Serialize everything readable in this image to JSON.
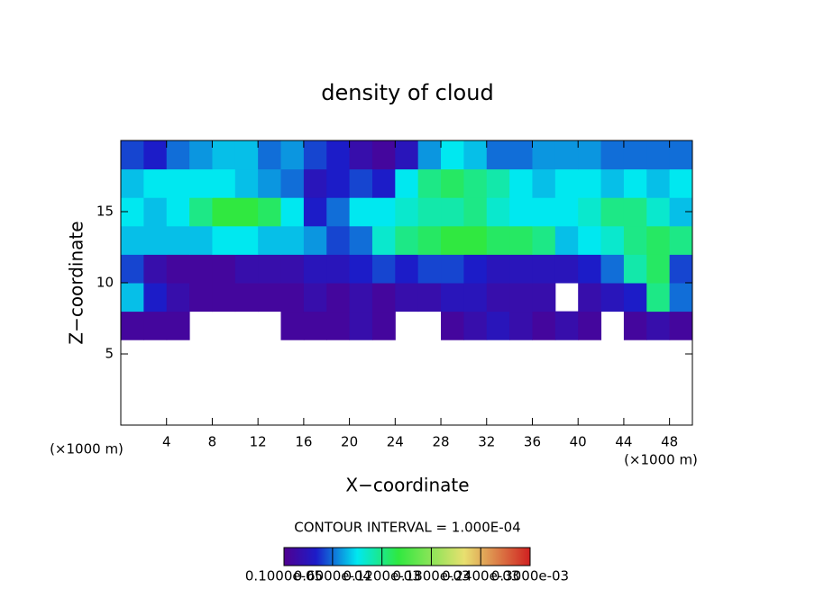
{
  "chart_data": {
    "type": "heatmap",
    "title": "density of cloud",
    "x_label": "X−coordinate",
    "y_label": "Z−coordinate",
    "x_unit": "(×1000 m)",
    "y_unit": "(×1000 m)",
    "note": "CONTOUR INTERVAL = 1.000E-04",
    "xlim": [
      0,
      50
    ],
    "ylim": [
      0,
      20
    ],
    "xticks": [
      4,
      8,
      12,
      16,
      20,
      24,
      28,
      32,
      36,
      40,
      44,
      48
    ],
    "yticks": [
      5,
      10,
      15
    ],
    "x_edges": [
      0,
      2,
      4,
      6,
      8,
      10,
      12,
      14,
      16,
      18,
      20,
      22,
      24,
      26,
      28,
      30,
      32,
      34,
      36,
      38,
      40,
      42,
      44,
      46,
      48,
      50
    ],
    "y_edges": [
      6,
      8,
      10,
      12,
      14,
      16,
      18,
      20
    ],
    "values": [
      [
        1e-05,
        1e-05,
        1e-05,
        null,
        null,
        null,
        null,
        1e-05,
        1e-05,
        1e-05,
        2e-05,
        1e-05,
        null,
        null,
        1e-05,
        2e-05,
        3e-05,
        2e-05,
        1e-05,
        2e-05,
        1e-05,
        null,
        1e-05,
        2e-05,
        1e-05
      ],
      [
        8e-05,
        4e-05,
        2e-05,
        1e-05,
        1e-05,
        1e-05,
        1e-05,
        1e-05,
        2e-05,
        1e-05,
        2e-05,
        1e-05,
        2e-05,
        2e-05,
        3e-05,
        3e-05,
        2e-05,
        2e-05,
        2e-05,
        null,
        2e-05,
        3e-05,
        4e-05,
        0.00012,
        6e-05
      ],
      [
        5e-05,
        2e-05,
        1e-05,
        1e-05,
        1e-05,
        2e-05,
        2e-05,
        2e-05,
        3e-05,
        3e-05,
        4e-05,
        5e-05,
        4e-05,
        5e-05,
        5e-05,
        4e-05,
        3e-05,
        3e-05,
        3e-05,
        3e-05,
        4e-05,
        6e-05,
        0.00011,
        0.00013,
        5e-05
      ],
      [
        8e-05,
        8e-05,
        8e-05,
        8e-05,
        9e-05,
        9e-05,
        8e-05,
        8e-05,
        7e-05,
        5e-05,
        6e-05,
        0.0001,
        0.00012,
        0.00013,
        0.00014,
        0.00014,
        0.00013,
        0.00013,
        0.00012,
        8e-05,
        9e-05,
        0.0001,
        0.00012,
        0.00013,
        0.00012
      ],
      [
        9e-05,
        8e-05,
        9e-05,
        0.00012,
        0.00014,
        0.00014,
        0.00013,
        9e-05,
        4e-05,
        6e-05,
        9e-05,
        9e-05,
        0.0001,
        0.00011,
        0.00011,
        0.00012,
        0.0001,
        9e-05,
        9e-05,
        9e-05,
        0.0001,
        0.00012,
        0.00012,
        0.0001,
        8e-05
      ],
      [
        8e-05,
        9e-05,
        9e-05,
        9e-05,
        9e-05,
        8e-05,
        7e-05,
        6e-05,
        3e-05,
        4e-05,
        5e-05,
        4e-05,
        9e-05,
        0.00012,
        0.00013,
        0.00012,
        0.00011,
        9e-05,
        8e-05,
        9e-05,
        9e-05,
        8e-05,
        9e-05,
        8e-05,
        9e-05
      ],
      [
        5e-05,
        4e-05,
        6e-05,
        7e-05,
        8e-05,
        8e-05,
        6e-05,
        7e-05,
        5e-05,
        4e-05,
        2e-05,
        1e-05,
        3e-05,
        7e-05,
        9e-05,
        8e-05,
        6e-05,
        6e-05,
        7e-05,
        7e-05,
        7e-05,
        6e-05,
        6e-05,
        6e-05,
        6e-05
      ]
    ],
    "colormap": [
      {
        "value": 1e-06,
        "color": "#500090"
      },
      {
        "value": 4e-05,
        "color": "#1c1cc8"
      },
      {
        "value": 9e-05,
        "color": "#00e8f0"
      },
      {
        "value": 0.00014,
        "color": "#30e840"
      },
      {
        "value": 0.00022,
        "color": "#e8e070"
      },
      {
        "value": 0.0003,
        "color": "#d02020"
      }
    ],
    "colorbar_ticks": [
      {
        "value": 1e-06,
        "label": "0.1000e-05"
      },
      {
        "value": 6e-05,
        "label": "0.6000e-04"
      },
      {
        "value": 0.00012,
        "label": "0.1200e-03"
      },
      {
        "value": 0.00018,
        "label": "0.1800e-03"
      },
      {
        "value": 0.00024,
        "label": "0.2400e-03"
      },
      {
        "value": 0.0003,
        "label": "0.3000e-03"
      }
    ]
  }
}
